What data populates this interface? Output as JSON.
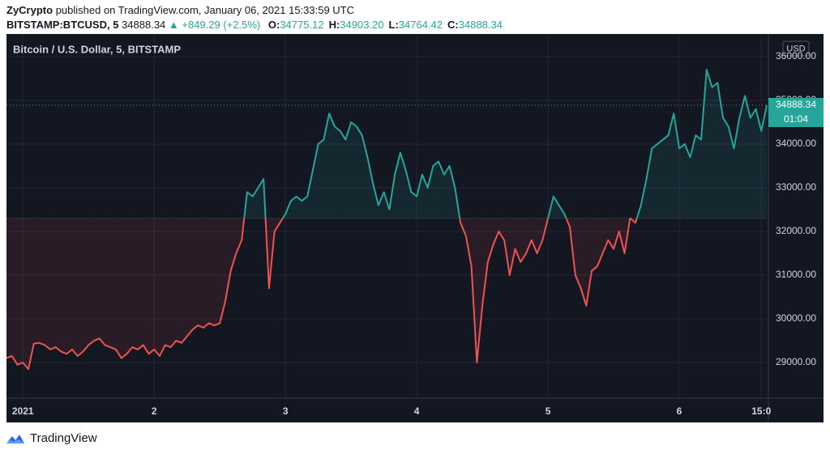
{
  "header": {
    "author": "ZyCrypto",
    "published": "published on TradingView.com, January 06, 2021 15:33:59 UTC",
    "symbol": "BITSTAMP:BTCUSD, 5",
    "price": "34888.34",
    "change": "▲ +849.29 (+2.5%)",
    "ohlc": [
      {
        "label": "O:",
        "value": "34775.12"
      },
      {
        "label": "H:",
        "value": "34903.20"
      },
      {
        "label": "L:",
        "value": "34764.42"
      },
      {
        "label": "C:",
        "value": "34888.34"
      }
    ]
  },
  "chart_data": {
    "type": "baseline",
    "title": "Bitcoin / U.S. Dollar, 5, BITSTAMP",
    "currency": "USD",
    "categories": [
      null,
      null,
      null,
      "2021",
      null,
      null,
      null,
      null,
      null,
      null,
      null,
      null,
      null,
      null,
      null,
      null,
      null,
      null,
      null,
      null,
      null,
      null,
      null,
      null,
      null,
      null,
      null,
      "2",
      null,
      null,
      null,
      null,
      null,
      null,
      null,
      null,
      null,
      null,
      null,
      null,
      null,
      null,
      null,
      null,
      null,
      null,
      null,
      null,
      null,
      null,
      null,
      "3",
      null,
      null,
      null,
      null,
      null,
      null,
      null,
      null,
      null,
      null,
      null,
      null,
      null,
      null,
      null,
      null,
      null,
      null,
      null,
      null,
      null,
      null,
      null,
      "4",
      null,
      null,
      null,
      null,
      null,
      null,
      null,
      null,
      null,
      null,
      null,
      null,
      null,
      null,
      null,
      null,
      null,
      null,
      null,
      null,
      null,
      null,
      null,
      "5",
      null,
      null,
      null,
      null,
      null,
      null,
      null,
      null,
      null,
      null,
      null,
      null,
      null,
      null,
      null,
      null,
      null,
      null,
      null,
      null,
      null,
      null,
      null,
      "6",
      null,
      null,
      null,
      null,
      null,
      null,
      null,
      null,
      null,
      null,
      null,
      null,
      null,
      null,
      "15:0",
      null
    ],
    "values": [
      29100,
      29150,
      28950,
      29000,
      28850,
      29430,
      29450,
      29400,
      29300,
      29350,
      29250,
      29200,
      29300,
      29150,
      29250,
      29400,
      29500,
      29550,
      29400,
      29350,
      29300,
      29100,
      29200,
      29350,
      29300,
      29400,
      29200,
      29300,
      29150,
      29400,
      29350,
      29500,
      29450,
      29600,
      29750,
      29850,
      29800,
      29900,
      29850,
      29900,
      30400,
      31100,
      31500,
      31800,
      32900,
      32800,
      33000,
      33200,
      30700,
      32000,
      32200,
      32400,
      32700,
      32800,
      32700,
      32800,
      33400,
      34000,
      34100,
      34700,
      34400,
      34300,
      34100,
      34500,
      34400,
      34200,
      33700,
      33100,
      32600,
      32900,
      32500,
      33300,
      33800,
      33400,
      32900,
      32800,
      33300,
      33000,
      33500,
      33600,
      33300,
      33500,
      33000,
      32200,
      31900,
      31200,
      29000,
      30300,
      31300,
      31700,
      32000,
      31800,
      31000,
      31600,
      31300,
      31500,
      31800,
      31500,
      31800,
      32300,
      32800,
      32600,
      32400,
      32100,
      31000,
      30700,
      30300,
      31100,
      31200,
      31500,
      31800,
      31600,
      32000,
      31500,
      32300,
      32200,
      32600,
      33200,
      33900,
      34000,
      34100,
      34200,
      34700,
      33900,
      34000,
      33700,
      34200,
      34100,
      35700,
      35300,
      35400,
      34600,
      34400,
      33900,
      34600,
      35100,
      34600,
      34800,
      34300,
      34888.34
    ],
    "baseline": 32300,
    "up_color": "#26a69a",
    "down_color": "#ef5350",
    "last_label": "34888.34",
    "countdown": "01:04",
    "ylim": [
      28185,
      36518
    ],
    "yticks": [
      {
        "value": 29000,
        "label": "29000.00"
      },
      {
        "value": 30000,
        "label": "30000.00"
      },
      {
        "value": 31000,
        "label": "31000.00"
      },
      {
        "value": 32000,
        "label": "32000.00"
      },
      {
        "value": 33000,
        "label": "33000.00"
      },
      {
        "value": 34000,
        "label": "34000.00"
      },
      {
        "value": 35000,
        "label": "35000.00"
      },
      {
        "value": 36000,
        "label": "36000.00"
      }
    ],
    "grid": true
  },
  "footer": {
    "brand": "TradingView"
  }
}
